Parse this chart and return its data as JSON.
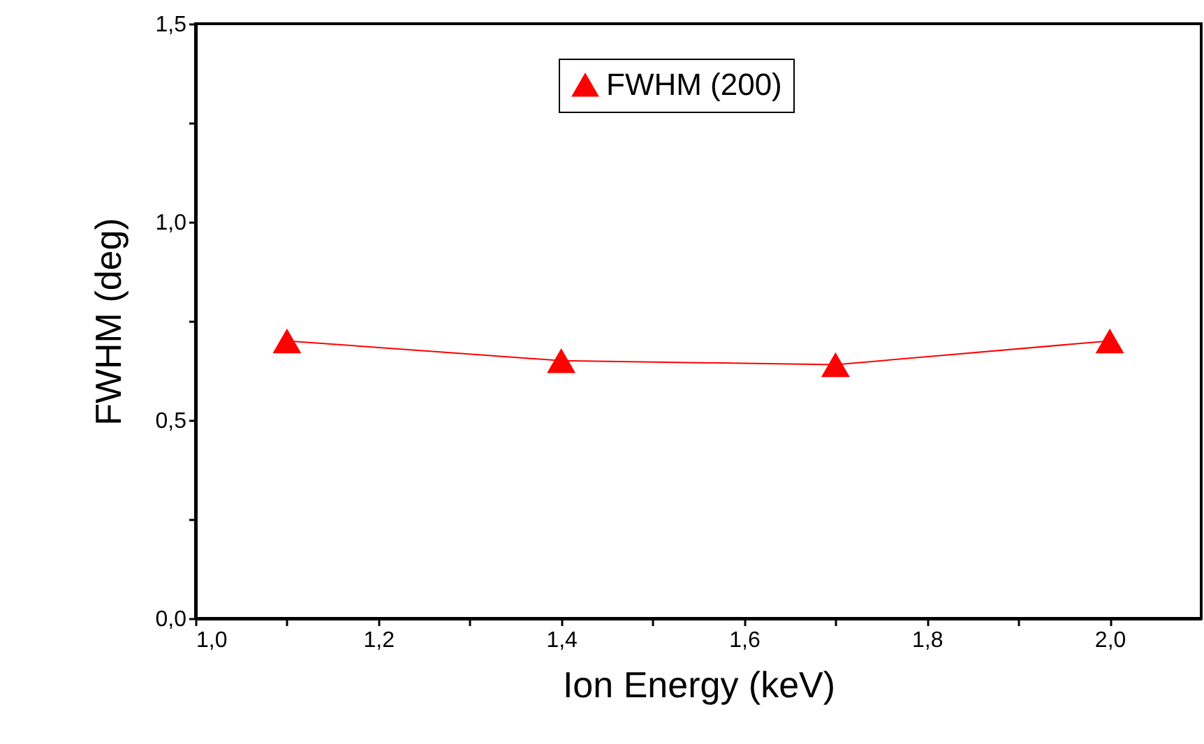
{
  "chart_data": {
    "type": "line",
    "xlabel": "Ion Energy (keV)",
    "ylabel": "FWHM (deg)",
    "x": [
      1.1,
      1.4,
      1.7,
      2.0
    ],
    "series": [
      {
        "name": "FWHM (200)",
        "color": "#ff0000",
        "values": [
          0.7,
          0.65,
          0.64,
          0.7
        ]
      }
    ],
    "xlim": [
      1.0,
      2.1
    ],
    "xticks": [
      {
        "value": 1.0,
        "label": "1,0"
      },
      {
        "value": 1.1,
        "label": null
      },
      {
        "value": 1.2,
        "label": "1,2"
      },
      {
        "value": 1.3,
        "label": null
      },
      {
        "value": 1.4,
        "label": "1,4"
      },
      {
        "value": 1.5,
        "label": null
      },
      {
        "value": 1.6,
        "label": "1,6"
      },
      {
        "value": 1.7,
        "label": null
      },
      {
        "value": 1.8,
        "label": "1,8"
      },
      {
        "value": 1.9,
        "label": null
      },
      {
        "value": 2.0,
        "label": "2,0"
      }
    ],
    "ylim": [
      0,
      1.5
    ],
    "yticks": [
      {
        "value": 0,
        "label": "0,0"
      },
      {
        "value": 0.25,
        "label": null
      },
      {
        "value": 0.5,
        "label": "0,5"
      },
      {
        "value": 0.75,
        "label": null
      },
      {
        "value": 1.0,
        "label": "1,0"
      },
      {
        "value": 1.25,
        "label": null
      },
      {
        "value": 1.5,
        "label": "1,5"
      }
    ],
    "marker": "triangle",
    "line_style": "solid",
    "grid": false,
    "legend": "top"
  }
}
